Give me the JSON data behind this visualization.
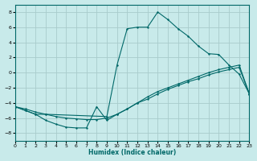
{
  "xlabel": "Humidex (Indice chaleur)",
  "bg_color": "#c8eaea",
  "grid_color": "#a8cccc",
  "line_color": "#006868",
  "xlim": [
    0,
    23
  ],
  "ylim": [
    -9,
    9
  ],
  "xticks": [
    0,
    1,
    2,
    3,
    4,
    5,
    6,
    7,
    8,
    9,
    10,
    11,
    12,
    13,
    14,
    15,
    16,
    17,
    18,
    19,
    20,
    21,
    22,
    23
  ],
  "yticks": [
    -8,
    -6,
    -4,
    -2,
    0,
    2,
    4,
    6,
    8
  ],
  "line_upper_x": [
    0,
    1,
    2,
    3,
    9,
    10,
    11,
    12,
    13,
    14,
    15,
    16,
    17,
    18,
    19,
    20,
    21,
    22,
    23
  ],
  "line_upper_y": [
    -4.5,
    -5.0,
    -5.5,
    -5.5,
    -5.8,
    1.0,
    5.8,
    6.0,
    6.0,
    8.0,
    7.0,
    5.8,
    4.8,
    3.5,
    2.5,
    2.4,
    1.0,
    -0.2,
    -2.8
  ],
  "line_mid_x": [
    0,
    1,
    2,
    3,
    4,
    5,
    6,
    7,
    8,
    9,
    10,
    11,
    12,
    13,
    14,
    15,
    16,
    17,
    18,
    19,
    20,
    21,
    22,
    23
  ],
  "line_mid_y": [
    -4.5,
    -4.8,
    -5.2,
    -5.5,
    -5.8,
    -6.0,
    -6.1,
    -6.2,
    -6.2,
    -6.0,
    -5.5,
    -4.8,
    -4.0,
    -3.2,
    -2.5,
    -2.0,
    -1.5,
    -1.0,
    -0.5,
    0.0,
    0.4,
    0.7,
    1.0,
    -2.8
  ],
  "line_low_x": [
    0,
    1,
    2,
    3,
    4,
    5,
    6,
    7,
    8,
    9,
    10,
    11,
    12,
    13,
    14,
    15,
    16,
    17,
    18,
    19,
    20,
    21,
    22,
    23
  ],
  "line_low_y": [
    -4.5,
    -5.0,
    -5.5,
    -6.3,
    -6.8,
    -7.2,
    -7.3,
    -7.3,
    -4.5,
    -6.3,
    -5.5,
    -4.8,
    -4.0,
    -3.5,
    -2.8,
    -2.2,
    -1.7,
    -1.2,
    -0.8,
    -0.3,
    0.1,
    0.4,
    0.7,
    -2.8
  ]
}
